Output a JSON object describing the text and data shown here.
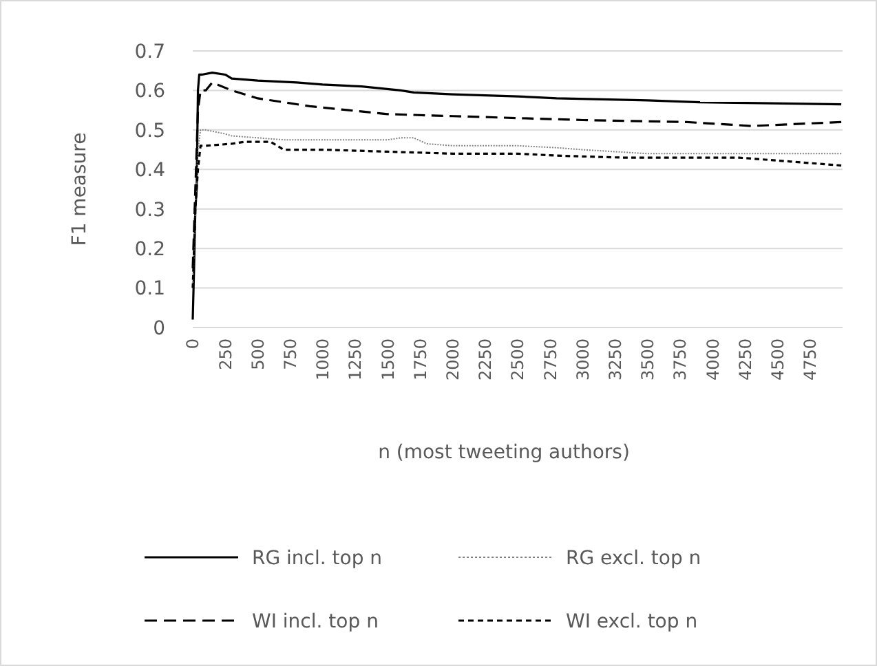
{
  "chart_data": {
    "type": "line",
    "xlabel": "n (most tweeting  authors)",
    "ylabel": "F1 measure",
    "xlim": [
      0,
      5000
    ],
    "xticks": [
      0,
      250,
      500,
      750,
      1000,
      1250,
      1500,
      1750,
      2000,
      2250,
      2500,
      2750,
      3000,
      3250,
      3500,
      3750,
      4000,
      4250,
      4500,
      4750
    ],
    "ylim": [
      0,
      0.7
    ],
    "yticks": [
      0,
      0.1,
      0.2,
      0.3,
      0.4,
      0.5,
      0.6,
      0.7
    ],
    "grid": "y",
    "legend": "bottom",
    "series": [
      {
        "name": "RG incl. top n",
        "color": "#000000",
        "line_style": "solid",
        "x": [
          0,
          10,
          20,
          30,
          40,
          50,
          70,
          150,
          250,
          300,
          500,
          800,
          1000,
          1300,
          1600,
          1700,
          2000,
          2500,
          2800,
          3500,
          3900,
          4990
        ],
        "values": [
          0.02,
          0.15,
          0.3,
          0.35,
          0.6,
          0.64,
          0.64,
          0.645,
          0.64,
          0.63,
          0.625,
          0.62,
          0.615,
          0.61,
          0.6,
          0.595,
          0.59,
          0.585,
          0.58,
          0.575,
          0.57,
          0.565
        ]
      },
      {
        "name": "RG excl. top n",
        "color": "#808080",
        "line_style": "dotted",
        "x": [
          0,
          20,
          40,
          60,
          100,
          250,
          300,
          500,
          700,
          1000,
          1500,
          1600,
          1700,
          1800,
          2000,
          2500,
          2800,
          3000,
          3500,
          4000,
          4990
        ],
        "values": [
          0.1,
          0.3,
          0.45,
          0.5,
          0.5,
          0.49,
          0.485,
          0.48,
          0.475,
          0.475,
          0.475,
          0.48,
          0.48,
          0.465,
          0.46,
          0.46,
          0.455,
          0.45,
          0.44,
          0.44,
          0.44
        ]
      },
      {
        "name": "WI incl. top n",
        "color": "#000000",
        "line_style": "dashed",
        "x": [
          0,
          20,
          40,
          60,
          100,
          150,
          300,
          500,
          600,
          900,
          1200,
          1500,
          2000,
          2500,
          3000,
          3800,
          4300,
          4990
        ],
        "values": [
          0.15,
          0.35,
          0.55,
          0.6,
          0.6,
          0.62,
          0.6,
          0.58,
          0.575,
          0.56,
          0.55,
          0.54,
          0.535,
          0.53,
          0.525,
          0.52,
          0.51,
          0.52
        ]
      },
      {
        "name": "WI excl. top n",
        "color": "#000000",
        "line_style": "shortdash",
        "x": [
          0,
          20,
          40,
          60,
          100,
          300,
          400,
          600,
          700,
          1000,
          1500,
          2000,
          2500,
          2800,
          3300,
          3800,
          4200,
          4600,
          4990
        ],
        "values": [
          0.1,
          0.3,
          0.4,
          0.46,
          0.46,
          0.465,
          0.47,
          0.47,
          0.45,
          0.45,
          0.445,
          0.44,
          0.44,
          0.435,
          0.43,
          0.43,
          0.43,
          0.42,
          0.41
        ]
      }
    ]
  }
}
